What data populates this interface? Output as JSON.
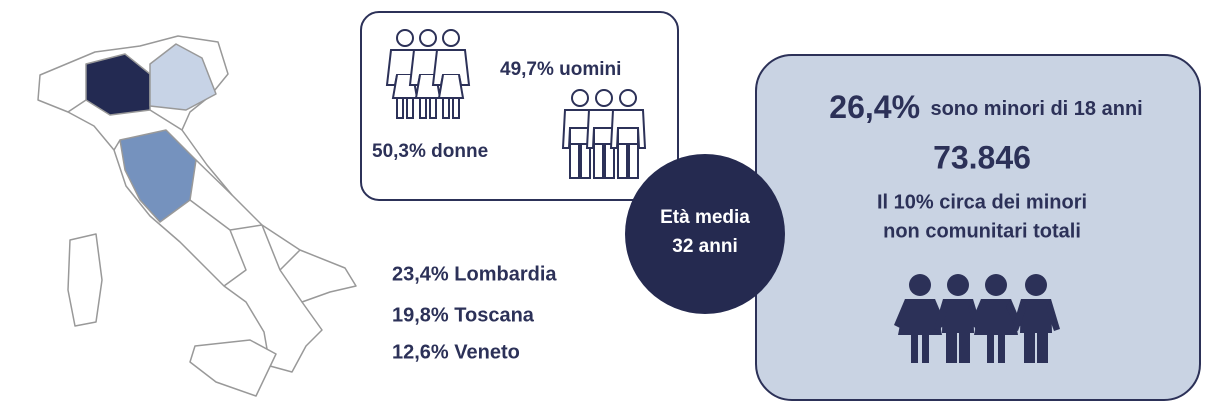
{
  "gender": {
    "men": "49,7% uomini",
    "women": "50,3% donne"
  },
  "age": {
    "label": "Età media",
    "value": "32 anni"
  },
  "regions": [
    "23,4% Lombardia",
    "19,8% Toscana",
    "12,6% Veneto"
  ],
  "minors": {
    "share": "26,4%",
    "share_text": "sono minori di 18 anni",
    "count": "73.846",
    "note_line1": "Il 10% circa dei minori",
    "note_line2": "non comunitari totali"
  }
}
